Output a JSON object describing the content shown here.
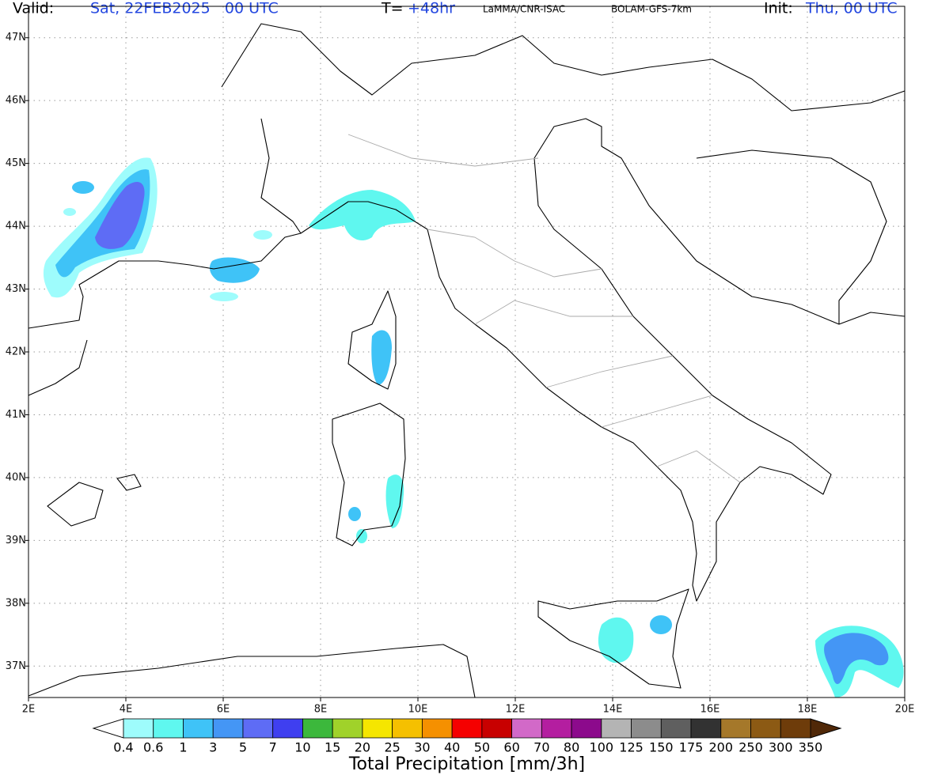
{
  "header": {
    "valid_label": "Valid:",
    "valid_time": "Sat, 22FEB2025   00 UTC",
    "step_label": "T=",
    "step": "+48hr",
    "source": "LaMMA/CNR-ISAC",
    "model": "BOLAM-GFS-7km",
    "init_label": "Init:",
    "init_time": "Thu, 00 UTC"
  },
  "map": {
    "lon_range": [
      2,
      20
    ],
    "lat_range": [
      36.5,
      47.5
    ],
    "lon_ticks": [
      {
        "value": 2,
        "label": "2E"
      },
      {
        "value": 4,
        "label": "4E"
      },
      {
        "value": 6,
        "label": "6E"
      },
      {
        "value": 8,
        "label": "8E"
      },
      {
        "value": 10,
        "label": "10E"
      },
      {
        "value": 12,
        "label": "12E"
      },
      {
        "value": 14,
        "label": "14E"
      },
      {
        "value": 16,
        "label": "16E"
      },
      {
        "value": 18,
        "label": "18E"
      },
      {
        "value": 20,
        "label": "20E"
      }
    ],
    "lat_ticks": [
      {
        "value": 37,
        "label": "37N"
      },
      {
        "value": 38,
        "label": "38N"
      },
      {
        "value": 39,
        "label": "39N"
      },
      {
        "value": 40,
        "label": "40N"
      },
      {
        "value": 41,
        "label": "41N"
      },
      {
        "value": 42,
        "label": "42N"
      },
      {
        "value": 43,
        "label": "43N"
      },
      {
        "value": 44,
        "label": "44N"
      },
      {
        "value": 45,
        "label": "45N"
      },
      {
        "value": 46,
        "label": "46N"
      },
      {
        "value": 47,
        "label": "47N"
      }
    ]
  },
  "colorbar": {
    "title": "Total Precipitation [mm/3h]",
    "levels": [
      0.4,
      0.6,
      1,
      3,
      5,
      7,
      10,
      15,
      20,
      25,
      30,
      40,
      50,
      60,
      70,
      80,
      100,
      125,
      150,
      175,
      200,
      250,
      300,
      350
    ],
    "colors": [
      "#9efcfc",
      "#5ff7ef",
      "#3fc3f7",
      "#4496f5",
      "#5e6cf5",
      "#3f3ff0",
      "#3cb83c",
      "#a0d22a",
      "#f5e600",
      "#f5c000",
      "#f59000",
      "#f50000",
      "#c80000",
      "#d269c8",
      "#b41ea0",
      "#8c0a8c",
      "#b4b4b4",
      "#8c8c8c",
      "#5f5f5f",
      "#323232",
      "#a5782a",
      "#8c5a14",
      "#6e3c0a"
    ],
    "under_color": "#ffffff",
    "over_color": "#502808"
  }
}
